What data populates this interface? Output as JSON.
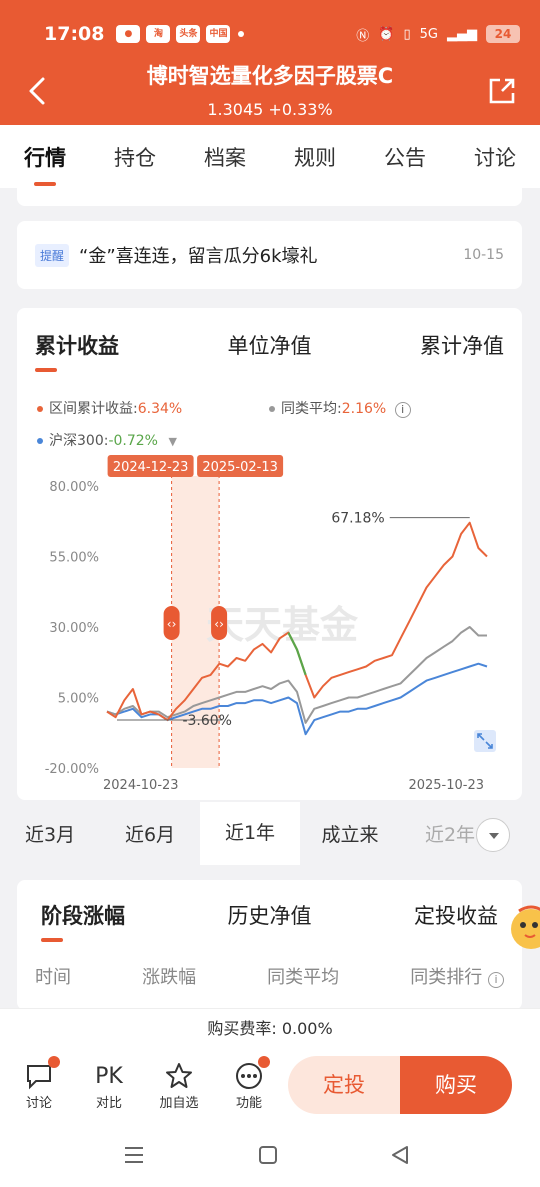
{
  "status": {
    "time": "17:08",
    "apps": [
      "●",
      "淘",
      "头条",
      "中国"
    ],
    "battery": "24",
    "signal": "5G"
  },
  "header": {
    "title": "博时智选量化多因子股票C",
    "subtitle": "1.3045 +0.33%"
  },
  "tabs": [
    "行情",
    "持仓",
    "档案",
    "规则",
    "公告",
    "讨论"
  ],
  "notice": {
    "tag": "提醒",
    "text": "“金”喜连连，留言瓜分6k壕礼",
    "date": "10-15"
  },
  "chart_tabs": [
    "累计收益",
    "单位净值",
    "累计净值"
  ],
  "legend": {
    "fund": {
      "label": "区间累计收益:",
      "value": "6.34%"
    },
    "peer": {
      "label": "同类平均:",
      "value": "2.16%"
    },
    "index": {
      "label": "沪深300:",
      "value": "-0.72%"
    }
  },
  "colors": {
    "fund": "#e8643a",
    "peer": "#999999",
    "index": "#4a86d8",
    "accent": "#e85a33",
    "drop": "#5aa64a"
  },
  "chart_data": {
    "type": "line",
    "y_ticks": [
      "80.00%",
      "55.00%",
      "30.00%",
      "5.00%",
      "-20.00%"
    ],
    "ylim": [
      -20,
      80
    ],
    "x_labels": [
      "2024-10-23",
      "2025-10-23"
    ],
    "highlight_start": "2024-12-23",
    "highlight_end": "2025-02-13",
    "max_label": "67.18%",
    "min_label": "-3.60%",
    "watermark": "天天基金",
    "series": [
      {
        "name": "区间累计收益",
        "values": [
          0,
          -2,
          4,
          8,
          -1,
          0,
          -1,
          -3,
          1,
          4,
          8,
          12,
          13,
          17,
          16,
          19,
          18,
          22,
          24,
          21,
          26,
          28,
          22,
          13,
          5,
          9,
          12,
          13,
          14,
          15,
          16,
          18,
          19,
          20,
          26,
          32,
          38,
          44,
          48,
          52,
          55,
          63,
          67,
          58,
          55
        ]
      },
      {
        "name": "同类平均",
        "values": [
          0,
          -1,
          1,
          2,
          -1,
          0,
          0,
          -2,
          -1,
          0,
          2,
          3,
          4,
          5,
          6,
          7,
          7,
          8,
          9,
          8,
          10,
          11,
          7,
          -4,
          1,
          2,
          3,
          4,
          5,
          5,
          6,
          7,
          8,
          9,
          10,
          13,
          16,
          19,
          21,
          23,
          25,
          28,
          30,
          27,
          27
        ]
      },
      {
        "name": "沪深300",
        "values": [
          0,
          -1,
          0,
          1,
          -2,
          -1,
          -1,
          -3,
          -2,
          -1,
          0,
          1,
          1,
          2,
          2,
          3,
          3,
          4,
          4,
          3,
          4,
          5,
          3,
          -8,
          -3,
          -2,
          -1,
          0,
          0,
          1,
          1,
          2,
          3,
          4,
          5,
          7,
          9,
          11,
          12,
          13,
          14,
          15,
          16,
          17,
          16
        ]
      }
    ]
  },
  "periods": [
    "近3月",
    "近6月",
    "近1年",
    "成立来",
    "近2年"
  ],
  "active_period": "近1年",
  "stage_tabs": [
    "阶段涨幅",
    "历史净值",
    "定投收益"
  ],
  "stage_headers": [
    "时间",
    "涨跌幅",
    "同类平均",
    "同类排行"
  ],
  "fee": "购买费率: 0.00%",
  "bottom": {
    "discuss": "讨论",
    "pk": "PK",
    "compare": "对比",
    "watch": "加自选",
    "func": "功能",
    "plan": "定投",
    "buy": "购买"
  }
}
